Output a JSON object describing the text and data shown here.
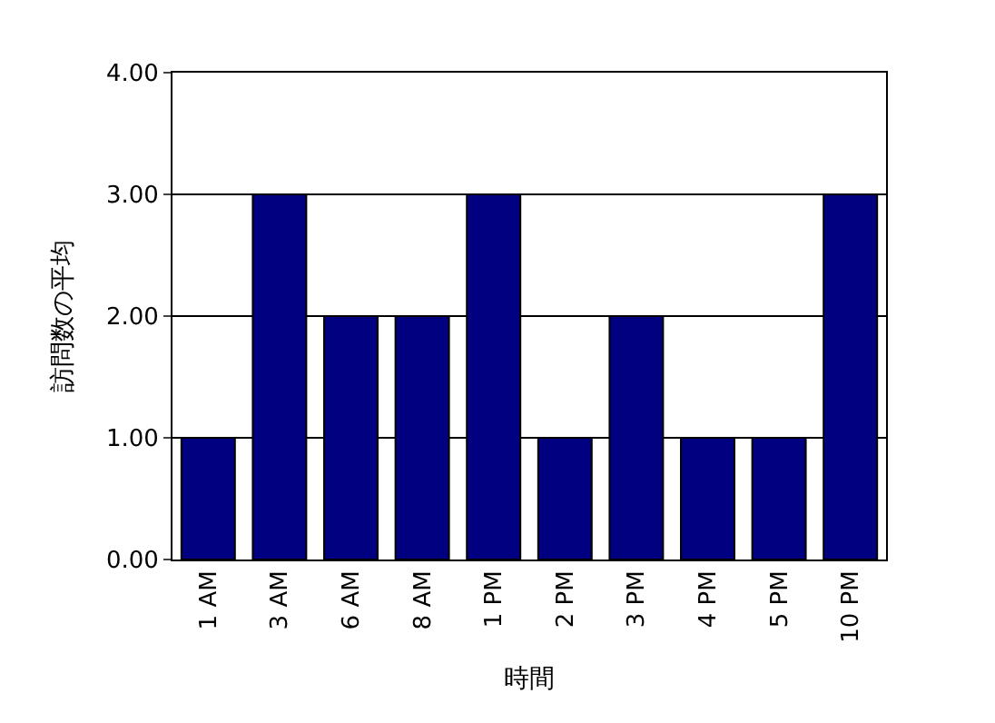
{
  "chart_data": {
    "type": "bar",
    "xlabel": "時間",
    "ylabel": "訪問数の平均",
    "categories": [
      "1 AM",
      "3 AM",
      "6 AM",
      "8 AM",
      "1 PM",
      "2 PM",
      "3 PM",
      "4 PM",
      "5 PM",
      "10 PM"
    ],
    "values": [
      1,
      3,
      2,
      2,
      3,
      1,
      2,
      1,
      1,
      3
    ],
    "color": "#000080",
    "ylim": [
      0,
      4
    ],
    "yticks": [
      {
        "value": 0,
        "label": "0.00"
      },
      {
        "value": 1,
        "label": "1.00"
      },
      {
        "value": 2,
        "label": "2.00"
      },
      {
        "value": 3,
        "label": "3.00"
      },
      {
        "value": 4,
        "label": "4.00"
      }
    ],
    "grid": "y"
  }
}
